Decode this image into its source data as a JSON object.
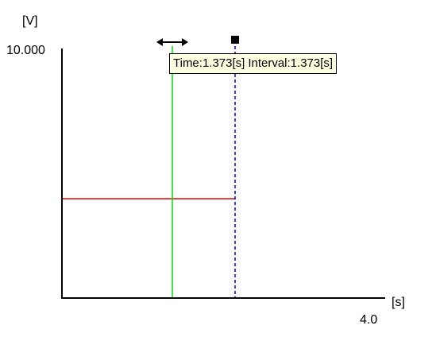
{
  "axes": {
    "y_unit": "[V]",
    "y_max": "10.000",
    "x_unit": "[s]",
    "x_max": "4.0"
  },
  "tooltip": {
    "time_text": "Time:1.373[s]",
    "interval_text": "Interval:1.373[s]"
  },
  "cursors": {
    "time_cursor_s": 1.373,
    "time_cursor_color": "#00dd00",
    "interval_cursor_color": "#0000ff",
    "level_line_color": "#dd0000"
  },
  "icons": {
    "time_cursor_handle": "double-arrow-icon",
    "interval_cursor_handle": "square-marker-icon"
  }
}
